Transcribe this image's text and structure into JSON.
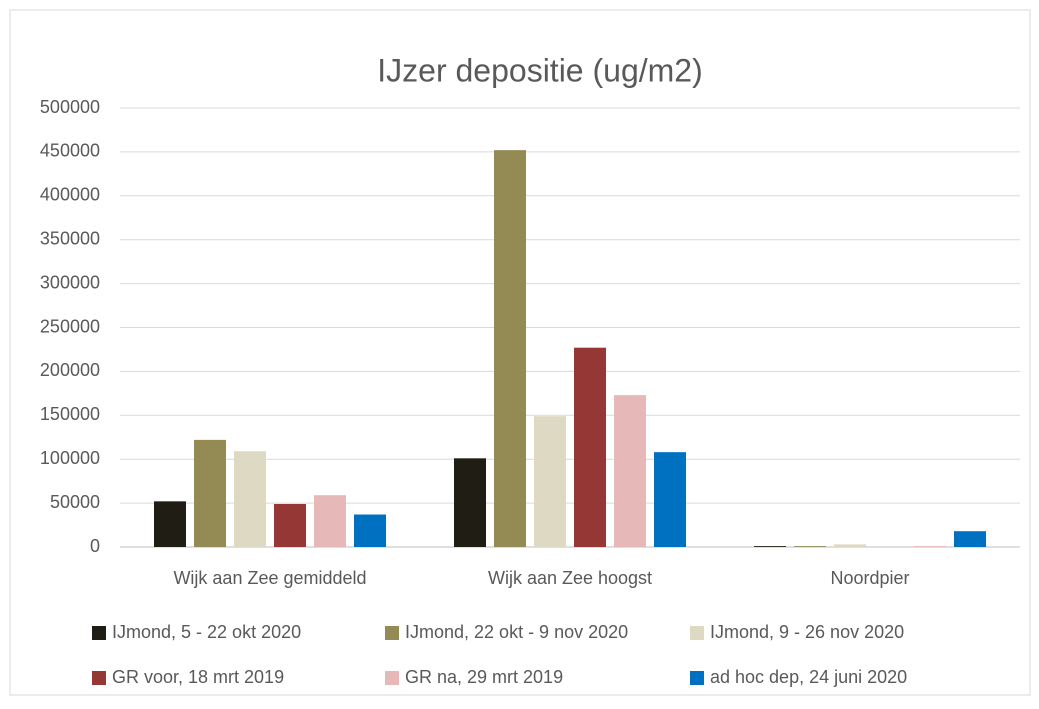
{
  "chart_data": {
    "type": "bar",
    "title": "IJzer depositie (ug/m2)",
    "categories": [
      "Wijk aan Zee gemiddeld",
      "Wijk aan Zee hoogst",
      "Noordpier"
    ],
    "series": [
      {
        "name": "IJmond, 5 - 22 okt 2020",
        "color": "#1f1d14",
        "values": [
          52000,
          101000,
          1000
        ]
      },
      {
        "name": "IJmond, 22 okt - 9 nov 2020",
        "color": "#948a54",
        "values": [
          122000,
          452000,
          1000
        ]
      },
      {
        "name": "IJmond, 9 - 26 nov 2020",
        "color": "#ddd9c3",
        "values": [
          109000,
          149000,
          3000
        ]
      },
      {
        "name": "GR voor, 18 mrt 2019",
        "color": "#953735",
        "values": [
          49000,
          227000,
          0
        ]
      },
      {
        "name": "GR na, 29 mrt 2019",
        "color": "#e6b9b8",
        "values": [
          59000,
          173000,
          1000
        ]
      },
      {
        "name": "ad hoc dep, 24 juni 2020",
        "color": "#0070c0",
        "values": [
          37000,
          108000,
          18000
        ]
      }
    ],
    "ylim": [
      0,
      500000
    ],
    "yticks": [
      0,
      50000,
      100000,
      150000,
      200000,
      250000,
      300000,
      350000,
      400000,
      450000,
      500000
    ],
    "grid": true,
    "legend": "bottom"
  }
}
